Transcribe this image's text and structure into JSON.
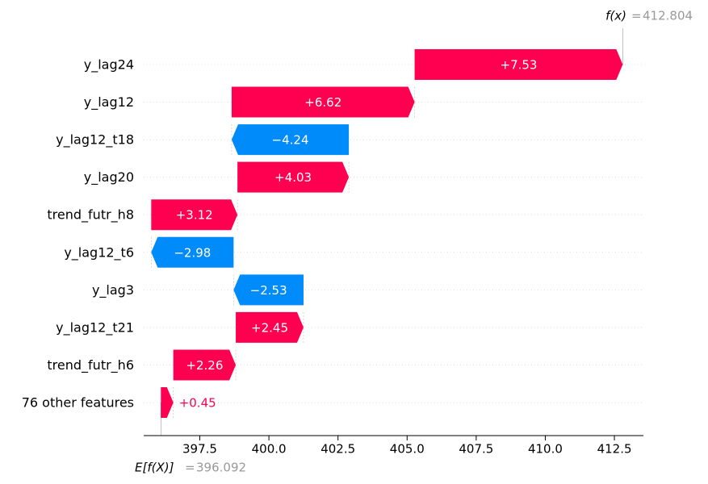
{
  "chart_data": {
    "type": "waterfall",
    "categories": [
      "y_lag24",
      "y_lag12",
      "y_lag12_t18",
      "y_lag20",
      "trend_futr_h8",
      "y_lag12_t6",
      "y_lag3",
      "y_lag12_t21",
      "trend_futr_h6",
      "76 other features"
    ],
    "values": [
      7.53,
      6.62,
      -4.24,
      4.03,
      3.12,
      -2.98,
      -2.53,
      2.45,
      2.26,
      0.45
    ],
    "value_labels": [
      "+7.53",
      "+6.62",
      "−4.24",
      "+4.03",
      "+3.12",
      "−2.98",
      "−2.53",
      "+2.45",
      "+2.26",
      "+0.45"
    ],
    "positive_color": "#ff0051",
    "negative_color": "#008bfb",
    "base_label": "E[f(X)]",
    "base_value": 396.092,
    "output_label": "f(x)",
    "output_value": 412.804,
    "equals_sign": "=",
    "xlim": [
      395.47,
      413.55
    ],
    "xticks": [
      397.5,
      {
        "value": 400,
        "label": "400.0"
      },
      402.5,
      {
        "value": 405,
        "label": "405.0"
      },
      407.5,
      {
        "value": 410,
        "label": "410.0"
      },
      412.5
    ]
  }
}
